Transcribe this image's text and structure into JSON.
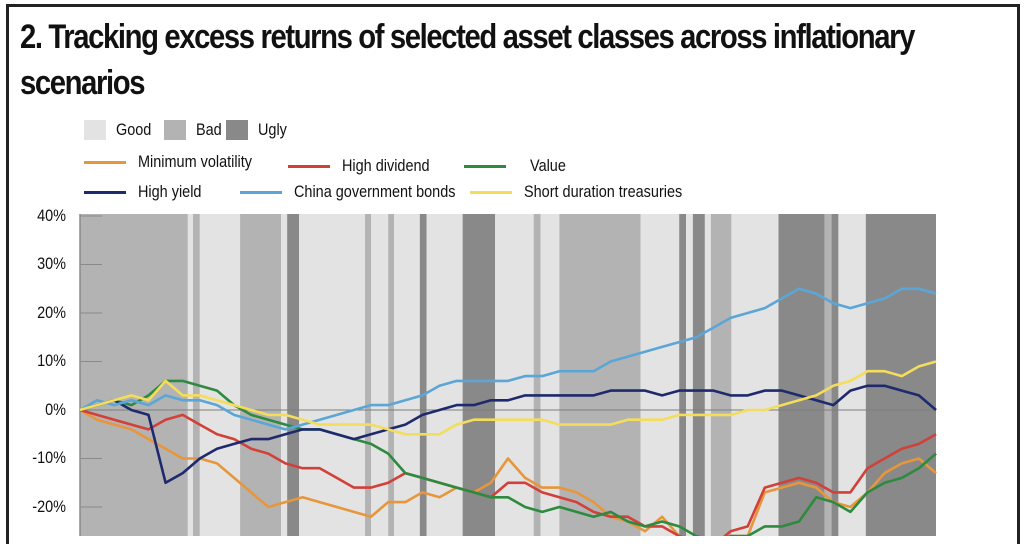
{
  "title": "2.  Tracking excess returns of selected asset classes across inflationary scenarios",
  "legend": {
    "regimes": [
      {
        "label": "Good",
        "color": "#e3e3e3"
      },
      {
        "label": "Bad",
        "color": "#b3b3b3"
      },
      {
        "label": "Ugly",
        "color": "#898989"
      }
    ],
    "series": [
      {
        "label": "Minimum volatility",
        "color": "#e8963c"
      },
      {
        "label": "High dividend",
        "color": "#d2403a"
      },
      {
        "label": "Value",
        "color": "#2e8a3e"
      },
      {
        "label": "High yield",
        "color": "#1f2a6e"
      },
      {
        "label": "China government bonds",
        "color": "#5ba6d6"
      },
      {
        "label": "Short duration treasuries",
        "color": "#f4dd5a"
      }
    ]
  },
  "chart_data": {
    "type": "line",
    "title": "2.  Tracking excess returns of selected asset classes across inflationary scenarios",
    "xlabel": "",
    "ylabel": "",
    "ylim": [
      -26,
      40
    ],
    "yticks": [
      "40%",
      "30%",
      "20%",
      "10%",
      "0%",
      "-10%",
      "-20%"
    ],
    "ytick_values": [
      40,
      30,
      20,
      10,
      0,
      -10,
      -20
    ],
    "grid": false,
    "legend_position": "top",
    "background_regimes": [
      {
        "regime": "Bad",
        "x0": 0.0,
        "x1": 0.126
      },
      {
        "regime": "Good",
        "x0": 0.126,
        "x1": 0.132
      },
      {
        "regime": "Bad",
        "x0": 0.132,
        "x1": 0.14
      },
      {
        "regime": "Good",
        "x0": 0.14,
        "x1": 0.187
      },
      {
        "regime": "Bad",
        "x0": 0.187,
        "x1": 0.235
      },
      {
        "regime": "Good",
        "x0": 0.235,
        "x1": 0.242
      },
      {
        "regime": "Ugly",
        "x0": 0.242,
        "x1": 0.256
      },
      {
        "regime": "Good",
        "x0": 0.256,
        "x1": 0.333
      },
      {
        "regime": "Bad",
        "x0": 0.333,
        "x1": 0.34
      },
      {
        "regime": "Good",
        "x0": 0.34,
        "x1": 0.36
      },
      {
        "regime": "Bad",
        "x0": 0.36,
        "x1": 0.367
      },
      {
        "regime": "Good",
        "x0": 0.367,
        "x1": 0.397
      },
      {
        "regime": "Ugly",
        "x0": 0.397,
        "x1": 0.405
      },
      {
        "regime": "Good",
        "x0": 0.405,
        "x1": 0.447
      },
      {
        "regime": "Ugly",
        "x0": 0.447,
        "x1": 0.485
      },
      {
        "regime": "Good",
        "x0": 0.485,
        "x1": 0.53
      },
      {
        "regime": "Bad",
        "x0": 0.53,
        "x1": 0.538
      },
      {
        "regime": "Good",
        "x0": 0.538,
        "x1": 0.56
      },
      {
        "regime": "Bad",
        "x0": 0.56,
        "x1": 0.655
      },
      {
        "regime": "Good",
        "x0": 0.655,
        "x1": 0.7
      },
      {
        "regime": "Ugly",
        "x0": 0.7,
        "x1": 0.708
      },
      {
        "regime": "Good",
        "x0": 0.708,
        "x1": 0.716
      },
      {
        "regime": "Ugly",
        "x0": 0.716,
        "x1": 0.73
      },
      {
        "regime": "Good",
        "x0": 0.73,
        "x1": 0.737
      },
      {
        "regime": "Bad",
        "x0": 0.737,
        "x1": 0.761
      },
      {
        "regime": "Good",
        "x0": 0.761,
        "x1": 0.816
      },
      {
        "regime": "Ugly",
        "x0": 0.816,
        "x1": 0.87
      },
      {
        "regime": "Bad",
        "x0": 0.87,
        "x1": 0.878
      },
      {
        "regime": "Ugly",
        "x0": 0.878,
        "x1": 0.886
      },
      {
        "regime": "Good",
        "x0": 0.886,
        "x1": 0.918
      },
      {
        "regime": "Ugly",
        "x0": 0.918,
        "x1": 1.0
      }
    ],
    "x": [
      0,
      0.02,
      0.04,
      0.06,
      0.08,
      0.1,
      0.12,
      0.14,
      0.16,
      0.18,
      0.2,
      0.22,
      0.24,
      0.26,
      0.28,
      0.3,
      0.32,
      0.34,
      0.36,
      0.38,
      0.4,
      0.42,
      0.44,
      0.46,
      0.48,
      0.5,
      0.52,
      0.54,
      0.56,
      0.58,
      0.6,
      0.62,
      0.64,
      0.66,
      0.68,
      0.7,
      0.72,
      0.74,
      0.76,
      0.78,
      0.8,
      0.82,
      0.84,
      0.86,
      0.88,
      0.9,
      0.92,
      0.94,
      0.96,
      0.98,
      1.0
    ],
    "series": [
      {
        "name": "Minimum volatility",
        "values": [
          0,
          -2,
          -3,
          -4,
          -6,
          -8,
          -10,
          -10,
          -11,
          -14,
          -17,
          -20,
          -19,
          -18,
          -19,
          -20,
          -21,
          -22,
          -19,
          -19,
          -17,
          -18,
          -16,
          -17,
          -15,
          -10,
          -14,
          -16,
          -16,
          -17,
          -19,
          -22,
          -23,
          -25,
          -22,
          -26,
          -28,
          -28,
          -26,
          -26,
          -17,
          -16,
          -15,
          -16,
          -19,
          -20,
          -17,
          -13,
          -11,
          -10,
          -13
        ]
      },
      {
        "name": "High dividend",
        "values": [
          0,
          -1,
          -2,
          -3,
          -4,
          -2,
          -1,
          -3,
          -5,
          -6,
          -8,
          -9,
          -11,
          -12,
          -12,
          -14,
          -16,
          -16,
          -15,
          -13,
          -14,
          -15,
          -16,
          -17,
          -18,
          -15,
          -15,
          -17,
          -18,
          -19,
          -21,
          -22,
          -22,
          -24,
          -24,
          -26,
          -27,
          -28,
          -25,
          -24,
          -16,
          -15,
          -14,
          -15,
          -17,
          -17,
          -12,
          -10,
          -8,
          -7,
          -5
        ]
      },
      {
        "name": "Value",
        "values": [
          0,
          1,
          2,
          1,
          3,
          6,
          6,
          5,
          4,
          1,
          -1,
          -2,
          -3,
          -4,
          -4,
          -5,
          -6,
          -7,
          -9,
          -13,
          -14,
          -15,
          -16,
          -17,
          -18,
          -18,
          -20,
          -21,
          -20,
          -21,
          -22,
          -21,
          -23,
          -24,
          -23,
          -24,
          -26,
          -27,
          -26,
          -26,
          -24,
          -24,
          -23,
          -18,
          -19,
          -21,
          -17,
          -15,
          -14,
          -12,
          -9
        ]
      },
      {
        "name": "High yield",
        "values": [
          0,
          1,
          2,
          0,
          -1,
          -15,
          -13,
          -10,
          -8,
          -7,
          -6,
          -6,
          -5,
          -4,
          -4,
          -5,
          -6,
          -5,
          -4,
          -3,
          -1,
          0,
          1,
          1,
          2,
          2,
          3,
          3,
          3,
          3,
          3,
          4,
          4,
          4,
          3,
          4,
          4,
          4,
          3,
          3,
          4,
          4,
          3,
          2,
          1,
          4,
          5,
          5,
          4,
          3,
          0
        ]
      },
      {
        "name": "China government bonds",
        "values": [
          0,
          2,
          1,
          2,
          1,
          3,
          2,
          2,
          1,
          -1,
          -2,
          -3,
          -4,
          -3,
          -2,
          -1,
          0,
          1,
          1,
          2,
          3,
          5,
          6,
          6,
          6,
          6,
          7,
          7,
          8,
          8,
          8,
          10,
          11,
          12,
          13,
          14,
          15,
          17,
          19,
          20,
          21,
          23,
          25,
          24,
          22,
          21,
          22,
          23,
          25,
          25,
          24
        ]
      },
      {
        "name": "Short duration treasuries",
        "values": [
          0,
          1,
          2,
          3,
          2,
          6,
          3,
          3,
          2,
          1,
          0,
          -1,
          -1,
          -2,
          -3,
          -3,
          -3,
          -3,
          -4,
          -5,
          -5,
          -5,
          -3,
          -2,
          -2,
          -2,
          -2,
          -2,
          -3,
          -3,
          -3,
          -3,
          -2,
          -2,
          -2,
          -1,
          -1,
          -1,
          -1,
          0,
          0,
          1,
          2,
          3,
          5,
          6,
          8,
          8,
          7,
          9,
          10
        ]
      }
    ]
  }
}
